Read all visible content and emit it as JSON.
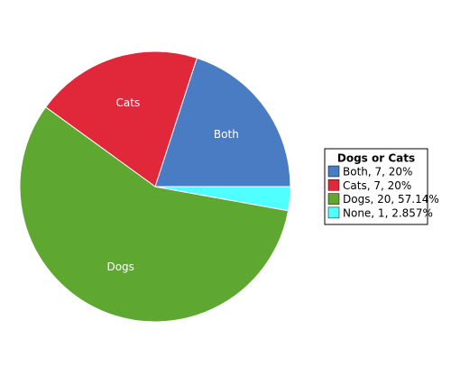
{
  "chart_data": {
    "type": "pie",
    "legend_title": "Dogs or Cats",
    "categories": [
      "Both, 7, 20%",
      "Cats, 7, 20%",
      "Dogs, 20, 57.14%",
      "None, 1, 2.857%"
    ],
    "slice_labels": [
      "Both",
      "Cats",
      "Dogs",
      null
    ],
    "values": [
      7,
      7,
      20,
      1
    ],
    "colors": [
      "#4a7cc4",
      "#e0283a",
      "#5ea832",
      "#50ffff"
    ],
    "legend_position": "right"
  }
}
